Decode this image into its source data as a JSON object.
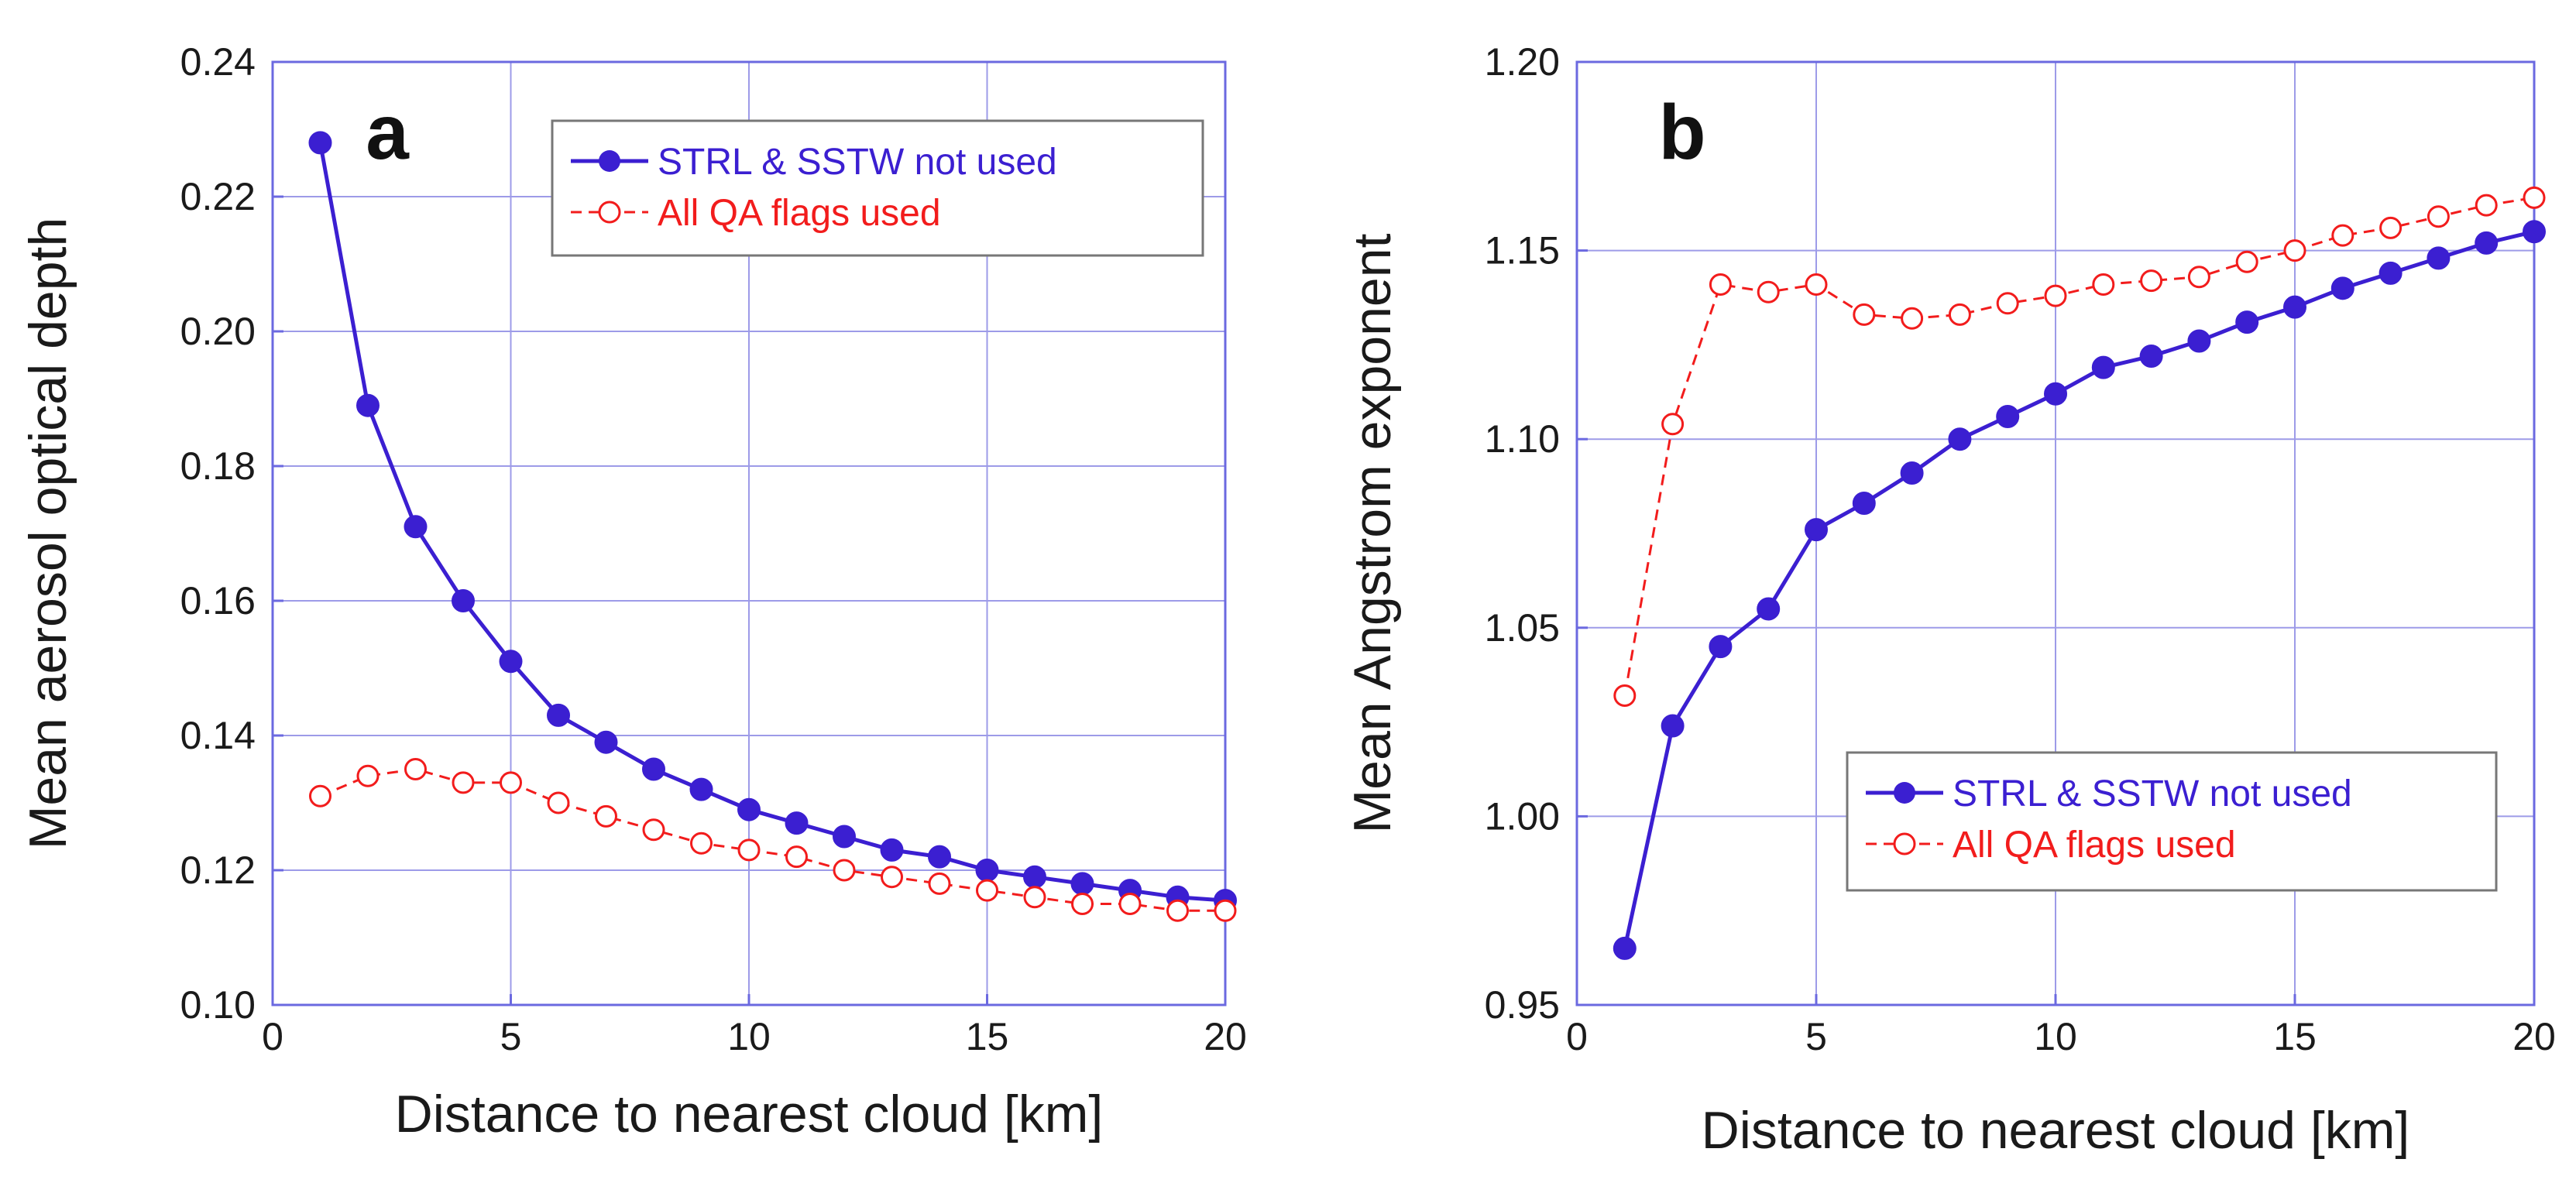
{
  "chart_data": [
    {
      "type": "line",
      "panel_label": "a",
      "xlabel": "Distance to nearest cloud [km]",
      "ylabel": "Mean aerosol optical depth",
      "xlim": [
        0,
        20
      ],
      "ylim": [
        0.1,
        0.24
      ],
      "x_ticks": [
        0,
        5,
        10,
        15,
        20
      ],
      "x_tick_labels": [
        "0",
        "5",
        "10",
        "15",
        "20"
      ],
      "y_ticks": [
        0.1,
        0.12,
        0.14,
        0.16,
        0.18,
        0.2,
        0.22,
        0.24
      ],
      "y_tick_labels": [
        "0.10",
        "0.12",
        "0.14",
        "0.16",
        "0.18",
        "0.20",
        "0.22",
        "0.24"
      ],
      "grid": true,
      "legend_position": "top-right",
      "x": [
        1,
        2,
        3,
        4,
        5,
        6,
        7,
        8,
        9,
        10,
        11,
        12,
        13,
        14,
        15,
        16,
        17,
        18,
        19,
        20
      ],
      "series": [
        {
          "name": "STRL & SSTW not used",
          "color": "#3b1fd1",
          "marker": "filled-circle",
          "linestyle": "solid",
          "values": [
            0.228,
            0.189,
            0.171,
            0.16,
            0.151,
            0.143,
            0.139,
            0.135,
            0.132,
            0.129,
            0.127,
            0.125,
            0.123,
            0.122,
            0.12,
            0.119,
            0.118,
            0.117,
            0.116,
            0.1155
          ]
        },
        {
          "name": "All QA flags used",
          "color": "#f21c1c",
          "marker": "open-circle",
          "linestyle": "dashed",
          "values": [
            0.131,
            0.134,
            0.135,
            0.133,
            0.133,
            0.13,
            0.128,
            0.126,
            0.124,
            0.123,
            0.122,
            0.12,
            0.119,
            0.118,
            0.117,
            0.116,
            0.115,
            0.115,
            0.114,
            0.114
          ]
        }
      ]
    },
    {
      "type": "line",
      "panel_label": "b",
      "xlabel": "Distance to nearest cloud [km]",
      "ylabel": "Mean Angstrom exponent",
      "xlim": [
        0,
        20
      ],
      "ylim": [
        0.95,
        1.2
      ],
      "x_ticks": [
        0,
        5,
        10,
        15,
        20
      ],
      "x_tick_labels": [
        "0",
        "5",
        "10",
        "15",
        "20"
      ],
      "y_ticks": [
        0.95,
        1.0,
        1.05,
        1.1,
        1.15,
        1.2
      ],
      "y_tick_labels": [
        "0.95",
        "1.00",
        "1.05",
        "1.10",
        "1.15",
        "1.20"
      ],
      "grid": true,
      "legend_position": "lower-right",
      "x": [
        1,
        2,
        3,
        4,
        5,
        6,
        7,
        8,
        9,
        10,
        11,
        12,
        13,
        14,
        15,
        16,
        17,
        18,
        19,
        20
      ],
      "series": [
        {
          "name": "STRL & SSTW not used",
          "color": "#3b1fd1",
          "marker": "filled-circle",
          "linestyle": "solid",
          "values": [
            0.965,
            1.024,
            1.045,
            1.055,
            1.076,
            1.083,
            1.091,
            1.1,
            1.106,
            1.112,
            1.119,
            1.122,
            1.126,
            1.131,
            1.135,
            1.14,
            1.144,
            1.148,
            1.152,
            1.155
          ]
        },
        {
          "name": "All QA flags used",
          "color": "#f21c1c",
          "marker": "open-circle",
          "linestyle": "dashed",
          "values": [
            1.032,
            1.104,
            1.141,
            1.139,
            1.141,
            1.133,
            1.132,
            1.133,
            1.136,
            1.138,
            1.141,
            1.142,
            1.143,
            1.147,
            1.15,
            1.154,
            1.156,
            1.159,
            1.162,
            1.164
          ]
        }
      ]
    }
  ]
}
